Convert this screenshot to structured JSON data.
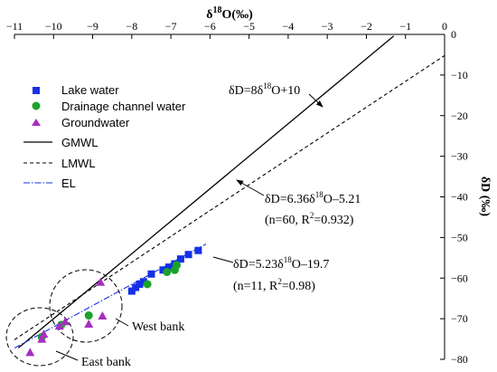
{
  "chart_data": {
    "type": "scatter",
    "title": "",
    "xlabel": "δ18O(‰)",
    "ylabel": "δD (‰)",
    "xlim": [
      -11,
      0
    ],
    "ylim": [
      -80,
      0
    ],
    "x_ticks": [
      "−11",
      "−10",
      "−9",
      "−8",
      "−7",
      "−6",
      "−5",
      "−4",
      "−3",
      "−2",
      "−1",
      "0"
    ],
    "y_ticks": [
      "0",
      "−10",
      "−20",
      "−30",
      "−40",
      "−50",
      "−60",
      "−70",
      "−80"
    ],
    "x_axis_position": "top",
    "y_axis_position": "right",
    "grid": false,
    "legend_position": "top-left",
    "series": [
      {
        "name": "Lake water",
        "marker": "square",
        "color": "#1530e6",
        "points": [
          [
            -8.0,
            -63.2
          ],
          [
            -7.9,
            -62.3
          ],
          [
            -7.8,
            -61.5
          ],
          [
            -7.7,
            -60.9
          ],
          [
            -7.5,
            -59.0
          ],
          [
            -7.2,
            -58.0
          ],
          [
            -7.05,
            -57.3
          ],
          [
            -6.9,
            -56.5
          ],
          [
            -6.75,
            -55.3
          ],
          [
            -6.55,
            -54.2
          ],
          [
            -6.3,
            -53.2
          ]
        ]
      },
      {
        "name": "Drainage channel water",
        "marker": "circle",
        "color": "#1aa32b",
        "points": [
          [
            -7.6,
            -61.5
          ],
          [
            -7.1,
            -58.5
          ],
          [
            -6.9,
            -58.0
          ],
          [
            -6.85,
            -56.8
          ],
          [
            -10.3,
            -74.5
          ],
          [
            -9.8,
            -71.5
          ],
          [
            -9.1,
            -69.2
          ]
        ]
      },
      {
        "name": "Groundwater",
        "marker": "triangle",
        "color": "#a52ec2",
        "points": [
          [
            -10.6,
            -78.3
          ],
          [
            -10.3,
            -75.0
          ],
          [
            -10.25,
            -73.8
          ],
          [
            -9.85,
            -71.8
          ],
          [
            -9.7,
            -70.7
          ],
          [
            -9.1,
            -71.3
          ],
          [
            -8.75,
            -69.3
          ],
          [
            -8.8,
            -61.0
          ]
        ]
      }
    ],
    "lines": [
      {
        "name": "GMWL",
        "style": "solid",
        "color": "#000000",
        "slope": 8,
        "intercept": 10,
        "x_range": [
          -10.9,
          -1.3
        ]
      },
      {
        "name": "LMWL",
        "style": "dashed",
        "color": "#000000",
        "slope": 6.36,
        "intercept": -5.21,
        "x_range": [
          -11,
          0
        ]
      },
      {
        "name": "EL",
        "style": "dashdot",
        "color": "#1530e6",
        "slope": 5.23,
        "intercept": -19.7,
        "x_range": [
          -11,
          -6.1
        ]
      }
    ],
    "annotations": [
      {
        "text": "δD=8δ18O+10"
      },
      {
        "text": "δD=6.36δ18O–5.21"
      },
      {
        "text": "(n=60, R2=0.932)"
      },
      {
        "text": "δD=5.23δ18O–19.7"
      },
      {
        "text": "(n=11, R2=0.98)"
      },
      {
        "text": "West bank"
      },
      {
        "text": "East bank"
      }
    ]
  }
}
